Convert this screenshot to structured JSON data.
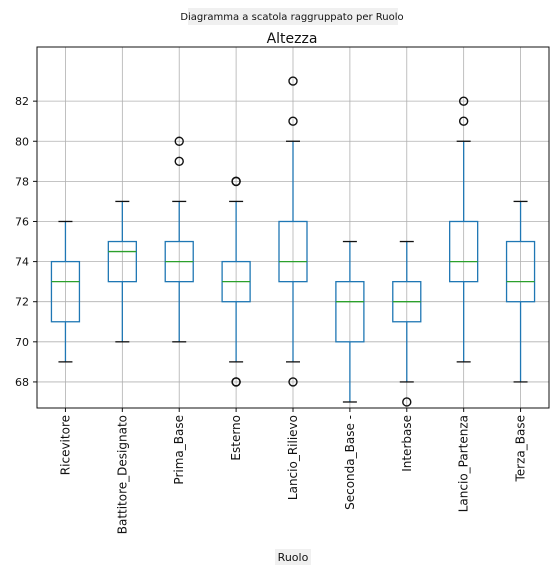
{
  "chart_data": {
    "type": "boxplot",
    "suptitle": "Diagramma a scatola raggruppato per Ruolo",
    "title": "Altezza",
    "xlabel": "Ruolo",
    "ylabel": "",
    "ylim": [
      66.7,
      84.7
    ],
    "yticks": [
      "68",
      "70",
      "72",
      "74",
      "76",
      "78",
      "80",
      "82"
    ],
    "grid": true,
    "colors": {
      "box": "#1f77b4",
      "median": "#2ca02c",
      "whisker": "#111111",
      "grid": "#b0b0b0",
      "label_bg": "#f0f0f0"
    },
    "categories": [
      "Ricevitore",
      "Battitore_Designato",
      "Prima_Base",
      "Esterno",
      "Lancio_Rilievo",
      "Seconda_Base -",
      "Interbase",
      "Lancio_Partenza",
      "Terza_Base"
    ],
    "boxes": [
      {
        "whislo": 69,
        "q1": 71,
        "med": 73,
        "q3": 74,
        "whishi": 76,
        "fliers": []
      },
      {
        "whislo": 70,
        "q1": 73,
        "med": 74.5,
        "q3": 75,
        "whishi": 77,
        "fliers": []
      },
      {
        "whislo": 70,
        "q1": 73,
        "med": 74,
        "q3": 75,
        "whishi": 77,
        "fliers": [
          79,
          80
        ]
      },
      {
        "whislo": 69,
        "q1": 72,
        "med": 73,
        "q3": 74,
        "whishi": 77,
        "fliers": [
          68,
          68,
          78,
          78
        ]
      },
      {
        "whislo": 69,
        "q1": 73,
        "med": 74,
        "q3": 76,
        "whishi": 80,
        "fliers": [
          68,
          81,
          83
        ]
      },
      {
        "whislo": 67,
        "q1": 70,
        "med": 72,
        "q3": 73,
        "whishi": 75,
        "fliers": []
      },
      {
        "whislo": 68,
        "q1": 71,
        "med": 72,
        "q3": 73,
        "whishi": 75,
        "fliers": [
          67
        ]
      },
      {
        "whislo": 69,
        "q1": 73,
        "med": 74,
        "q3": 76,
        "whishi": 80,
        "fliers": [
          81,
          82
        ]
      },
      {
        "whislo": 68,
        "q1": 72,
        "med": 73,
        "q3": 75,
        "whishi": 77,
        "fliers": []
      }
    ]
  }
}
